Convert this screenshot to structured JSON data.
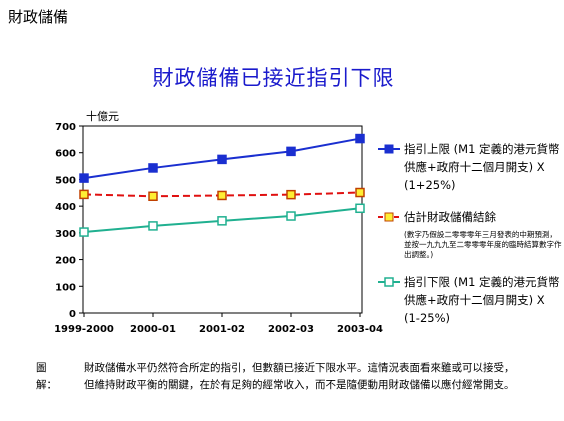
{
  "header": {
    "section": "財政儲備"
  },
  "chart_data": {
    "type": "line",
    "title": "財政儲備已接近指引下限",
    "ylabel": "十億元",
    "categories": [
      "1999-2000",
      "2000-01",
      "2001-02",
      "2002-03",
      "2003-04"
    ],
    "ylim": [
      0,
      700
    ],
    "yticks": [
      0,
      100,
      200,
      300,
      400,
      500,
      600,
      700
    ],
    "grid": false,
    "legend_position": "right",
    "series": [
      {
        "name": "指引上限 (M1 定義的港元貨幣供應+政府十二個月開支) X (1+25%)",
        "values": [
          505,
          543,
          575,
          605,
          653
        ],
        "color": "#1a2fd0",
        "marker": "square",
        "dash": "solid"
      },
      {
        "name": "估計財政儲備結餘",
        "note": "(數字乃假設二零零零年三月發表的中期預測，並按一九九九至二零零零年度的臨時結算數字作出調整。)",
        "values": [
          444,
          437,
          440,
          443,
          451
        ],
        "color": "#e01010",
        "marker": "square-yellow",
        "dash": "dashed"
      },
      {
        "name": "指引下限 (M1 定義的港元貨幣供應+政府十二個月開支) X (1-25%)",
        "values": [
          303,
          326,
          345,
          363,
          392
        ],
        "color": "#20b090",
        "marker": "square",
        "dash": "solid"
      }
    ]
  },
  "caption": {
    "label": "圖解：",
    "text": "財政儲備水平仍然符合所定的指引，但數額已接近下限水平。這情況表面看來雖或可以接受，但維持財政平衡的關鍵，在於有足夠的經常收入，而不是隨便動用財政儲備以應付經常開支。"
  }
}
